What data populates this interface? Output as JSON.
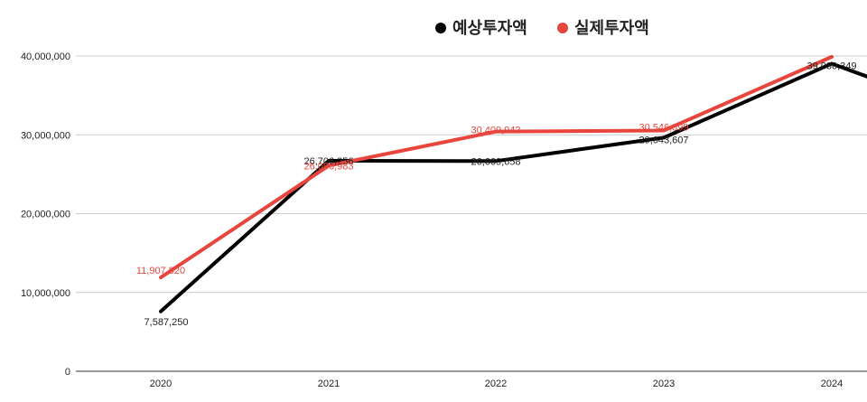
{
  "chart_data": {
    "type": "line",
    "title": "",
    "xlabel": "",
    "ylabel": "",
    "categories": [
      "2020",
      "2021",
      "2022",
      "2023",
      "2024"
    ],
    "y_ticks": [
      "0",
      "10,000,000",
      "20,000,000",
      "30,000,000",
      "40,000,000"
    ],
    "ylim": [
      0,
      40000000
    ],
    "grid": true,
    "legend_position": "top-right",
    "series": [
      {
        "name": "예상투자액",
        "color": "#000000",
        "values": [
          7587250,
          26706256,
          26669658,
          29643607,
          39030349
        ],
        "labels": [
          "7,587,250",
          "26,706,256",
          "26,669,658",
          "29,643,607",
          "39,030,349"
        ],
        "trailing_value": 37400000
      },
      {
        "name": "실제투자액",
        "color": "#e8453c",
        "values": [
          11907820,
          26096983,
          30409942,
          30546899,
          39900000
        ],
        "labels": [
          "11,907,820",
          "26,096,983",
          "30,409,942",
          "30,546,899",
          ""
        ]
      }
    ]
  }
}
